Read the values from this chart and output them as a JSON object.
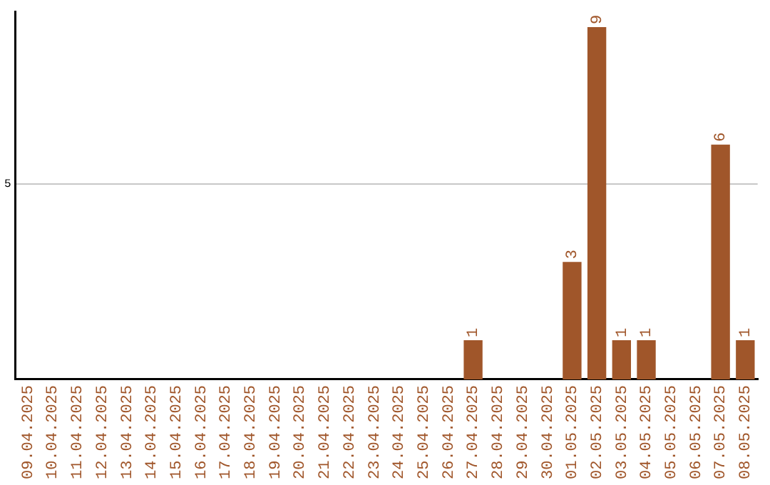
{
  "chart_data": {
    "type": "bar",
    "categories": [
      "09.04.2025",
      "10.04.2025",
      "11.04.2025",
      "12.04.2025",
      "13.04.2025",
      "14.04.2025",
      "15.04.2025",
      "16.04.2025",
      "17.04.2025",
      "18.04.2025",
      "19.04.2025",
      "20.04.2025",
      "21.04.2025",
      "22.04.2025",
      "23.04.2025",
      "24.04.2025",
      "25.04.2025",
      "26.04.2025",
      "27.04.2025",
      "28.04.2025",
      "29.04.2025",
      "30.04.2025",
      "01.05.2025",
      "02.05.2025",
      "03.05.2025",
      "04.05.2025",
      "05.05.2025",
      "06.05.2025",
      "07.05.2025",
      "08.05.2025"
    ],
    "values": [
      null,
      null,
      null,
      null,
      null,
      null,
      null,
      null,
      null,
      null,
      null,
      null,
      null,
      null,
      null,
      null,
      null,
      null,
      1,
      null,
      null,
      null,
      3,
      9,
      1,
      1,
      null,
      null,
      6,
      1
    ],
    "data_labels": true,
    "color": "#a0562a",
    "ylim": [
      0,
      9.4
    ],
    "yticks": [
      5
    ],
    "grid": "y",
    "legend": false
  }
}
